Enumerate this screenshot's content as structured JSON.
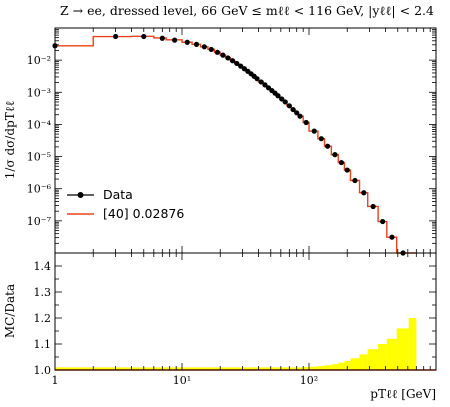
{
  "chart_data": [
    {
      "type": "line",
      "title": "Z → ee, dressed level, 66 GeV ≤ mℓℓ < 116 GeV, |yℓℓ| < 2.4",
      "xlabel": "pTℓℓ [GeV]",
      "ylabel": "1/σ dσ/dpTℓℓ",
      "x_scale": "log",
      "y_scale": "log",
      "xlim": [
        1,
        1000
      ],
      "ylim": [
        1e-08,
        0.1
      ],
      "y_tick_labels": [
        "10⁻⁷",
        "10⁻⁶",
        "10⁻⁵",
        "10⁻⁴",
        "10⁻³",
        "10⁻²"
      ],
      "legend_position": "lower-left",
      "series": [
        {
          "name": "Data",
          "style": "markers",
          "color": "#000000",
          "x": [
            1,
            3,
            5,
            7,
            8.75,
            11,
            13,
            15,
            17,
            19,
            21,
            23,
            25,
            27,
            29,
            31,
            33,
            35,
            37,
            39,
            42,
            45,
            48,
            51,
            54,
            57,
            61,
            65,
            70,
            75,
            80,
            85,
            95,
            110,
            125,
            140,
            160,
            180,
            200,
            230,
            270,
            320,
            380,
            450,
            550
          ],
          "y": [
            0.028,
            0.0545,
            0.0545,
            0.048,
            0.042,
            0.036,
            0.031,
            0.026,
            0.0215,
            0.0175,
            0.0143,
            0.0117,
            0.0096,
            0.0079,
            0.0065,
            0.0054,
            0.0045,
            0.00375,
            0.00315,
            0.00265,
            0.0021,
            0.0017,
            0.00138,
            0.00113,
            0.00094,
            0.00078,
            0.00062,
            0.0005,
            0.00038,
            0.00029,
            0.00023,
            0.00018,
            0.000115,
            6.2e-05,
            3.6e-05,
            2.1e-05,
            1.15e-05,
            6.5e-06,
            3.8e-06,
            1.8e-06,
            7.5e-07,
            2.8e-07,
            9.5e-08,
            3.1e-08,
            8e-09
          ]
        },
        {
          "name": "[40] 0.02876",
          "style": "step",
          "color": "#e8431a",
          "bin_edges": [
            1,
            2,
            4,
            6,
            7.5,
            10,
            12,
            14,
            16,
            18,
            20,
            22,
            24,
            26,
            28,
            30,
            32,
            34,
            36,
            38,
            40,
            43.5,
            46.5,
            49.5,
            52.5,
            55.5,
            59,
            63,
            67,
            72.5,
            77.5,
            82.5,
            90,
            100,
            117.5,
            132.5,
            150,
            170,
            190,
            212,
            250,
            290,
            350,
            410,
            490,
            610,
            700
          ],
          "values": [
            0.028,
            0.054,
            0.055,
            0.049,
            0.043,
            0.036,
            0.031,
            0.026,
            0.0217,
            0.0176,
            0.0144,
            0.0118,
            0.0096,
            0.0079,
            0.0065,
            0.0054,
            0.0045,
            0.00375,
            0.00315,
            0.00265,
            0.0021,
            0.0017,
            0.00138,
            0.00113,
            0.00094,
            0.00078,
            0.00062,
            0.0005,
            0.00038,
            0.00029,
            0.00023,
            0.00018,
            0.000115,
            6.2e-05,
            3.6e-05,
            2.1e-05,
            1.15e-05,
            6.5e-06,
            3.8e-06,
            1.8e-06,
            7.5e-07,
            2.8e-07,
            9.5e-08,
            3.1e-08,
            8e-09,
            1.5e-09
          ]
        }
      ]
    },
    {
      "type": "area",
      "ylabel": "MC/Data",
      "xlabel": "pTℓℓ [GeV]",
      "x_scale": "log",
      "xlim": [
        1,
        1000
      ],
      "ylim": [
        1.0,
        1.45
      ],
      "y_tick_labels": [
        "1.0",
        "1.1",
        "1.2",
        "1.3",
        "1.4"
      ],
      "x_tick_labels": [
        "1",
        "10¹",
        "10²"
      ],
      "band": {
        "color": "#ffff00",
        "bin_edges": [
          1,
          2,
          4,
          6,
          7.5,
          10,
          20,
          40,
          60,
          90,
          100,
          117.5,
          132.5,
          150,
          170,
          190,
          212,
          250,
          290,
          350,
          410,
          490,
          610,
          700
        ],
        "upper": [
          1.01,
          1.01,
          1.01,
          1.01,
          1.01,
          1.01,
          1.01,
          1.01,
          1.01,
          1.012,
          1.013,
          1.015,
          1.018,
          1.022,
          1.028,
          1.035,
          1.045,
          1.06,
          1.08,
          1.1,
          1.12,
          1.16,
          1.2,
          1.2
        ],
        "lower": [
          1.0,
          1.0,
          1.0,
          1.0,
          1.0,
          1.0,
          1.0,
          1.0,
          1.0,
          1.0,
          1.0,
          1.0,
          1.0,
          1.0,
          1.0,
          1.0,
          1.0,
          1.0,
          1.0,
          1.0,
          1.0,
          1.0,
          1.0,
          1.0
        ]
      },
      "series": [
        {
          "name": "[40] 0.02876",
          "color": "#e8431a",
          "x": [
            1,
            1000
          ],
          "y": [
            1.0,
            1.0
          ]
        }
      ]
    }
  ]
}
